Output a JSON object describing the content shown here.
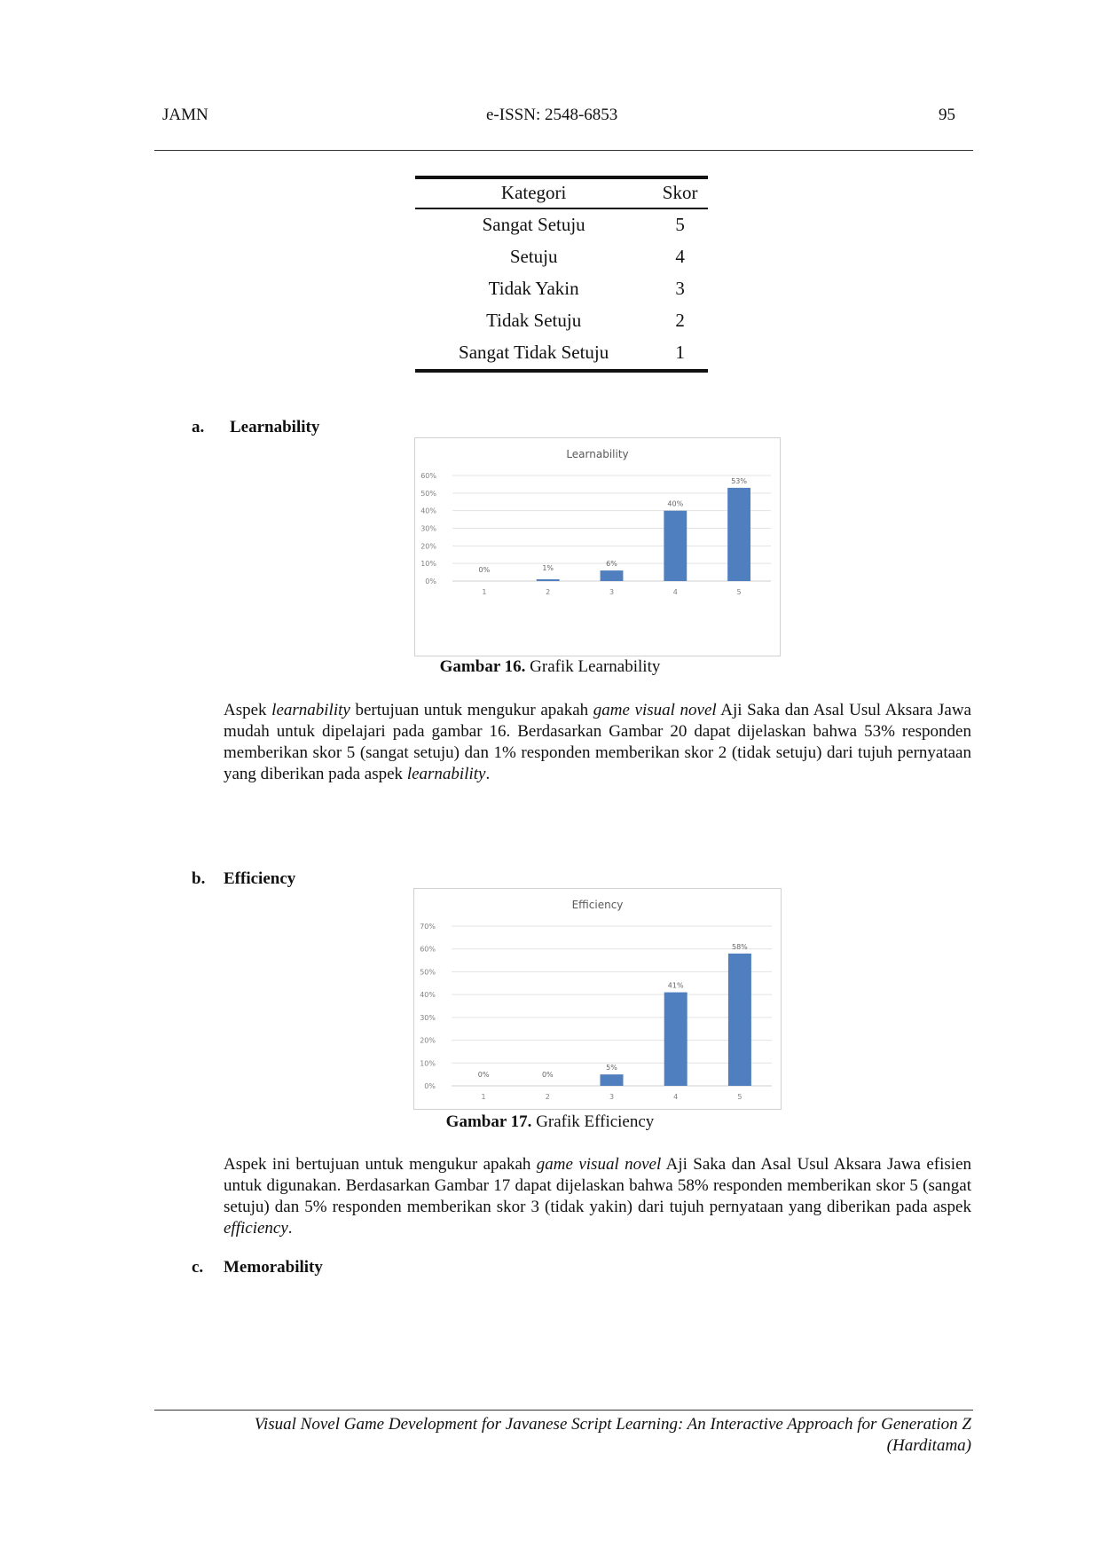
{
  "header": {
    "left": "JAMN",
    "center": "e-ISSN: 2548-6853",
    "page": "95"
  },
  "table": {
    "headers": [
      "Kategori",
      "Skor"
    ],
    "rows": [
      [
        "Sangat Setuju",
        "5"
      ],
      [
        "Setuju",
        "4"
      ],
      [
        "Tidak Yakin",
        "3"
      ],
      [
        "Tidak Setuju",
        "2"
      ],
      [
        "Sangat Tidak Setuju",
        "1"
      ]
    ]
  },
  "sections": [
    {
      "letter": "a.",
      "title": "Learnability",
      "caption_bold": "Gambar 16.",
      "caption": " Grafik Learnability",
      "paragraph": [
        "Aspek ",
        {
          "i": "learnability"
        },
        " bertujuan untuk mengukur apakah ",
        {
          "i": "game visual novel"
        },
        " Aji Saka dan Asal Usul Aksara Jawa mudah untuk dipelajari pada gambar 16. Berdasarkan Gambar 20 dapat dijelaskan bahwa 53% responden memberikan skor 5 (sangat setuju) dan 1% responden memberikan skor 2 (tidak setuju) dari tujuh pernyataan yang diberikan pada aspek ",
        {
          "i": "learnability"
        },
        "."
      ]
    },
    {
      "letter": "b.",
      "title": "Efficiency",
      "caption_bold": "Gambar 17.",
      "caption": " Grafik Efficiency",
      "paragraph": [
        "Aspek ini bertujuan untuk mengukur apakah ",
        {
          "i": "game visual novel"
        },
        " Aji Saka dan Asal Usul Aksara Jawa efisien untuk digunakan. Berdasarkan Gambar 17 dapat dijelaskan bahwa 58% responden memberikan skor 5 (sangat setuju) dan 5% responden memberikan skor 3 (tidak yakin) dari tujuh pernyataan yang diberikan pada aspek ",
        {
          "i": "efficiency"
        },
        "."
      ]
    },
    {
      "letter": "c.",
      "title": "Memorability"
    }
  ],
  "chart_data": [
    {
      "type": "bar",
      "title": "Learnability",
      "categories": [
        "1",
        "2",
        "3",
        "4",
        "5"
      ],
      "values": [
        0,
        1,
        6,
        40,
        53
      ],
      "data_labels": [
        "0%",
        "1%",
        "6%",
        "40%",
        "53%"
      ],
      "ylim": [
        0,
        60
      ],
      "yticks": [
        "0%",
        "10%",
        "20%",
        "30%",
        "40%",
        "50%",
        "60%"
      ],
      "grid": true,
      "color": "#4f7fbf"
    },
    {
      "type": "bar",
      "title": "Efficiency",
      "categories": [
        "1",
        "2",
        "3",
        "4",
        "5"
      ],
      "values": [
        0,
        0,
        5,
        41,
        58
      ],
      "data_labels": [
        "0%",
        "0%",
        "5%",
        "41%",
        "58%"
      ],
      "ylim": [
        0,
        70
      ],
      "yticks": [
        "0%",
        "10%",
        "20%",
        "30%",
        "40%",
        "50%",
        "60%",
        "70%"
      ],
      "grid": true,
      "color": "#4f7fbf"
    }
  ],
  "footer": {
    "line1": "Visual Novel Game Development for Javanese Script Learning: An Interactive Approach for Generation Z",
    "line2": "(Harditama)"
  }
}
